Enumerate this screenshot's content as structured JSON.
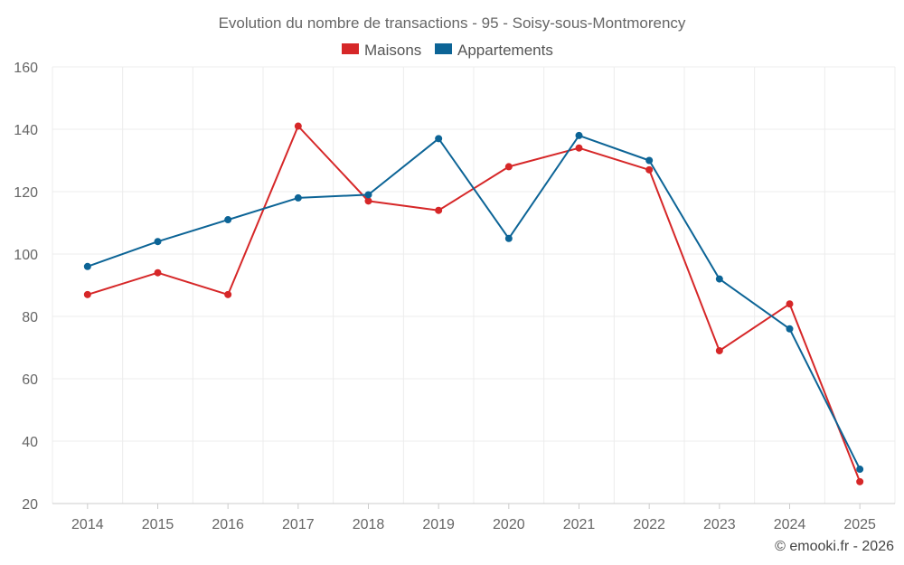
{
  "chart_data": {
    "type": "line",
    "title": "Evolution du nombre de transactions - 95 - Soisy-sous-Montmorency",
    "categories": [
      "2014",
      "2015",
      "2016",
      "2017",
      "2018",
      "2019",
      "2020",
      "2021",
      "2022",
      "2023",
      "2024",
      "2025"
    ],
    "series": [
      {
        "name": "Maisons",
        "color": "#d62728",
        "values": [
          87,
          94,
          87,
          141,
          117,
          114,
          128,
          134,
          127,
          69,
          84,
          27
        ]
      },
      {
        "name": "Appartements",
        "color": "#0c6496",
        "values": [
          96,
          104,
          111,
          118,
          119,
          137,
          105,
          138,
          130,
          92,
          76,
          31
        ]
      }
    ],
    "ylim": [
      20,
      160
    ],
    "yticks": [
      20,
      40,
      60,
      80,
      100,
      120,
      140,
      160
    ],
    "xlabel": "",
    "ylabel": "",
    "grid": true,
    "legend": "top-center"
  },
  "credit": "© emooki.fr - 2026"
}
